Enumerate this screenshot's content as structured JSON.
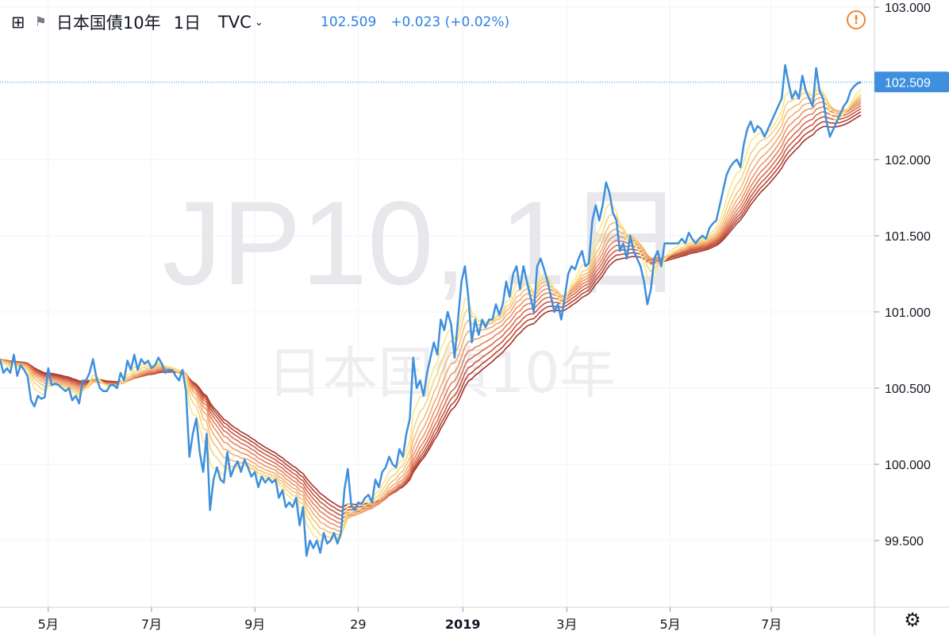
{
  "header": {
    "add_icon": "⊞",
    "flag_icon": "⚑",
    "symbol_name": "日本国債10年",
    "interval": "1日",
    "exchange": "TVC",
    "dropdown_icon": "⌄",
    "last_price": "102.509",
    "change": "+0.023 (+0.02%)",
    "alert_icon": "!",
    "settings_icon": "⚙"
  },
  "watermark": {
    "line1": "JP10, 1日",
    "line2": "日本国債10年"
  },
  "colors": {
    "price_line": "#3e8fdd",
    "price_tag": "#3e8fdd",
    "ribbon": [
      "#f9e785",
      "#f7d37d",
      "#f4bf76",
      "#f1aa70",
      "#ec9566",
      "#e2805a",
      "#d66a4e",
      "#c75641",
      "#b64434",
      "#a2342a"
    ],
    "grid": "#f0f3fa",
    "axis_text": "#131722",
    "alert": "#f0862c"
  },
  "chart_data": {
    "type": "line",
    "y_ticks": [
      "103.000",
      "102.500",
      "102.000",
      "101.500",
      "101.000",
      "100.500",
      "100.000",
      "99.500"
    ],
    "ylim": [
      99.0,
      103.0
    ],
    "x_ticks": [
      {
        "label": "5月",
        "t": 0.07
      },
      {
        "label": "7月",
        "t": 0.22
      },
      {
        "label": "9月",
        "t": 0.37
      },
      {
        "label": "29",
        "t": 0.52
      },
      {
        "label": "2019",
        "t": 0.672
      },
      {
        "label": "3月",
        "t": 0.823
      },
      {
        "label": "5月",
        "t": 0.973
      },
      {
        "label": "7月",
        "t": 1.12
      }
    ],
    "last_value": "102.509",
    "series": [
      {
        "type": "price",
        "points": [
          [
            0.0,
            100.69
          ],
          [
            0.005,
            100.6
          ],
          [
            0.01,
            100.63
          ],
          [
            0.015,
            100.6
          ],
          [
            0.02,
            100.72
          ],
          [
            0.025,
            100.58
          ],
          [
            0.03,
            100.65
          ],
          [
            0.035,
            100.62
          ],
          [
            0.04,
            100.58
          ],
          [
            0.045,
            100.42
          ],
          [
            0.05,
            100.38
          ],
          [
            0.055,
            100.45
          ],
          [
            0.06,
            100.43
          ],
          [
            0.065,
            100.44
          ],
          [
            0.07,
            100.63
          ],
          [
            0.075,
            100.52
          ],
          [
            0.08,
            100.53
          ],
          [
            0.085,
            100.52
          ],
          [
            0.09,
            100.5
          ],
          [
            0.095,
            100.48
          ],
          [
            0.1,
            100.5
          ],
          [
            0.105,
            100.42
          ],
          [
            0.11,
            100.45
          ],
          [
            0.115,
            100.4
          ],
          [
            0.12,
            100.55
          ],
          [
            0.125,
            100.55
          ],
          [
            0.13,
            100.6
          ],
          [
            0.135,
            100.69
          ],
          [
            0.14,
            100.57
          ],
          [
            0.145,
            100.5
          ],
          [
            0.15,
            100.48
          ],
          [
            0.155,
            100.48
          ],
          [
            0.16,
            100.52
          ],
          [
            0.165,
            100.52
          ],
          [
            0.17,
            100.5
          ],
          [
            0.175,
            100.6
          ],
          [
            0.18,
            100.55
          ],
          [
            0.185,
            100.68
          ],
          [
            0.19,
            100.62
          ],
          [
            0.195,
            100.72
          ],
          [
            0.2,
            100.62
          ],
          [
            0.205,
            100.69
          ],
          [
            0.21,
            100.66
          ],
          [
            0.215,
            100.68
          ],
          [
            0.22,
            100.63
          ],
          [
            0.225,
            100.65
          ],
          [
            0.23,
            100.7
          ],
          [
            0.235,
            100.66
          ],
          [
            0.24,
            100.6
          ],
          [
            0.245,
            100.62
          ],
          [
            0.25,
            100.62
          ],
          [
            0.255,
            100.58
          ],
          [
            0.26,
            100.55
          ],
          [
            0.265,
            100.62
          ],
          [
            0.27,
            100.48
          ],
          [
            0.275,
            100.05
          ],
          [
            0.28,
            100.2
          ],
          [
            0.285,
            100.3
          ],
          [
            0.29,
            100.08
          ],
          [
            0.295,
            99.95
          ],
          [
            0.3,
            100.2
          ],
          [
            0.305,
            99.7
          ],
          [
            0.31,
            99.9
          ],
          [
            0.315,
            99.98
          ],
          [
            0.32,
            99.9
          ],
          [
            0.325,
            99.88
          ],
          [
            0.33,
            100.08
          ],
          [
            0.335,
            99.92
          ],
          [
            0.34,
            99.98
          ],
          [
            0.345,
            100.02
          ],
          [
            0.35,
            99.95
          ],
          [
            0.355,
            100.03
          ],
          [
            0.36,
            99.98
          ],
          [
            0.365,
            99.92
          ],
          [
            0.37,
            99.95
          ],
          [
            0.375,
            99.85
          ],
          [
            0.38,
            99.92
          ],
          [
            0.385,
            99.88
          ],
          [
            0.39,
            99.91
          ],
          [
            0.395,
            99.88
          ],
          [
            0.4,
            99.9
          ],
          [
            0.405,
            99.78
          ],
          [
            0.41,
            99.83
          ],
          [
            0.415,
            99.72
          ],
          [
            0.42,
            99.75
          ],
          [
            0.425,
            99.72
          ],
          [
            0.43,
            99.78
          ],
          [
            0.435,
            99.6
          ],
          [
            0.44,
            99.72
          ],
          [
            0.445,
            99.4
          ],
          [
            0.45,
            99.5
          ],
          [
            0.455,
            99.45
          ],
          [
            0.46,
            99.5
          ],
          [
            0.465,
            99.42
          ],
          [
            0.47,
            99.55
          ],
          [
            0.475,
            99.48
          ],
          [
            0.48,
            99.5
          ],
          [
            0.485,
            99.55
          ],
          [
            0.49,
            99.48
          ],
          [
            0.495,
            99.55
          ],
          [
            0.5,
            99.83
          ],
          [
            0.505,
            99.97
          ],
          [
            0.51,
            99.73
          ],
          [
            0.515,
            99.7
          ],
          [
            0.52,
            99.75
          ],
          [
            0.525,
            99.74
          ],
          [
            0.53,
            99.78
          ],
          [
            0.535,
            99.8
          ],
          [
            0.54,
            99.75
          ],
          [
            0.545,
            99.9
          ],
          [
            0.55,
            99.85
          ],
          [
            0.555,
            99.95
          ],
          [
            0.56,
            99.98
          ],
          [
            0.565,
            100.05
          ],
          [
            0.57,
            100.0
          ],
          [
            0.575,
            99.98
          ],
          [
            0.58,
            100.1
          ],
          [
            0.585,
            100.05
          ],
          [
            0.59,
            100.2
          ],
          [
            0.595,
            100.3
          ],
          [
            0.6,
            100.7
          ],
          [
            0.605,
            100.5
          ],
          [
            0.61,
            100.55
          ],
          [
            0.615,
            100.45
          ],
          [
            0.62,
            100.6
          ],
          [
            0.625,
            100.7
          ],
          [
            0.63,
            100.8
          ],
          [
            0.635,
            100.72
          ],
          [
            0.64,
            100.95
          ],
          [
            0.645,
            100.88
          ],
          [
            0.65,
            101.0
          ],
          [
            0.655,
            100.92
          ],
          [
            0.66,
            100.7
          ],
          [
            0.665,
            100.95
          ],
          [
            0.67,
            101.2
          ],
          [
            0.675,
            101.3
          ],
          [
            0.68,
            101.1
          ],
          [
            0.685,
            100.8
          ],
          [
            0.69,
            100.95
          ],
          [
            0.695,
            100.85
          ],
          [
            0.7,
            100.95
          ],
          [
            0.705,
            100.9
          ],
          [
            0.71,
            100.95
          ],
          [
            0.715,
            100.95
          ],
          [
            0.72,
            101.05
          ],
          [
            0.725,
            100.98
          ],
          [
            0.73,
            101.05
          ],
          [
            0.735,
            101.2
          ],
          [
            0.74,
            101.1
          ],
          [
            0.745,
            101.25
          ],
          [
            0.75,
            101.3
          ],
          [
            0.755,
            101.15
          ],
          [
            0.76,
            101.3
          ],
          [
            0.765,
            101.2
          ],
          [
            0.77,
            101.1
          ],
          [
            0.775,
            101.0
          ],
          [
            0.78,
            101.3
          ],
          [
            0.785,
            101.35
          ],
          [
            0.79,
            101.28
          ],
          [
            0.795,
            101.2
          ],
          [
            0.8,
            101.1
          ],
          [
            0.805,
            101.0
          ],
          [
            0.81,
            101.05
          ],
          [
            0.815,
            100.95
          ],
          [
            0.82,
            101.1
          ],
          [
            0.825,
            101.25
          ],
          [
            0.83,
            101.3
          ],
          [
            0.835,
            101.28
          ],
          [
            0.84,
            101.35
          ],
          [
            0.845,
            101.4
          ],
          [
            0.85,
            101.3
          ],
          [
            0.855,
            101.32
          ],
          [
            0.86,
            101.6
          ],
          [
            0.865,
            101.7
          ],
          [
            0.87,
            101.6
          ],
          [
            0.875,
            101.7
          ],
          [
            0.88,
            101.85
          ],
          [
            0.885,
            101.78
          ],
          [
            0.89,
            101.65
          ],
          [
            0.895,
            101.6
          ],
          [
            0.9,
            101.4
          ],
          [
            0.905,
            101.45
          ],
          [
            0.91,
            101.35
          ],
          [
            0.915,
            101.5
          ],
          [
            0.92,
            101.4
          ],
          [
            0.925,
            101.35
          ],
          [
            0.93,
            101.3
          ],
          [
            0.935,
            101.2
          ],
          [
            0.94,
            101.05
          ],
          [
            0.945,
            101.15
          ],
          [
            0.95,
            101.35
          ],
          [
            0.955,
            101.4
          ],
          [
            0.96,
            101.3
          ],
          [
            0.965,
            101.45
          ],
          [
            0.97,
            101.45
          ],
          [
            0.975,
            101.45
          ],
          [
            0.98,
            101.45
          ],
          [
            0.985,
            101.45
          ],
          [
            0.99,
            101.48
          ],
          [
            0.995,
            101.45
          ],
          [
            1.0,
            101.52
          ],
          [
            1.005,
            101.48
          ],
          [
            1.01,
            101.45
          ],
          [
            1.015,
            101.48
          ],
          [
            1.02,
            101.5
          ],
          [
            1.025,
            101.48
          ],
          [
            1.03,
            101.55
          ],
          [
            1.035,
            101.58
          ],
          [
            1.04,
            101.6
          ],
          [
            1.045,
            101.7
          ],
          [
            1.05,
            101.8
          ],
          [
            1.055,
            101.9
          ],
          [
            1.06,
            101.95
          ],
          [
            1.065,
            101.98
          ],
          [
            1.07,
            102.0
          ],
          [
            1.075,
            101.95
          ],
          [
            1.08,
            102.1
          ],
          [
            1.085,
            102.2
          ],
          [
            1.09,
            102.25
          ],
          [
            1.095,
            102.18
          ],
          [
            1.1,
            102.22
          ],
          [
            1.105,
            102.2
          ],
          [
            1.11,
            102.15
          ],
          [
            1.115,
            102.2
          ],
          [
            1.12,
            102.25
          ],
          [
            1.125,
            102.3
          ],
          [
            1.13,
            102.35
          ],
          [
            1.135,
            102.4
          ],
          [
            1.14,
            102.62
          ],
          [
            1.145,
            102.5
          ],
          [
            1.15,
            102.4
          ],
          [
            1.155,
            102.45
          ],
          [
            1.16,
            102.4
          ],
          [
            1.165,
            102.55
          ],
          [
            1.17,
            102.45
          ],
          [
            1.175,
            102.4
          ],
          [
            1.18,
            102.35
          ],
          [
            1.185,
            102.6
          ],
          [
            1.19,
            102.45
          ],
          [
            1.195,
            102.4
          ],
          [
            1.2,
            102.25
          ],
          [
            1.205,
            102.15
          ],
          [
            1.21,
            102.2
          ],
          [
            1.215,
            102.25
          ],
          [
            1.22,
            102.3
          ],
          [
            1.225,
            102.35
          ],
          [
            1.23,
            102.38
          ],
          [
            1.235,
            102.45
          ],
          [
            1.24,
            102.48
          ],
          [
            1.245,
            102.5
          ],
          [
            1.25,
            102.509
          ]
        ]
      },
      {
        "type": "ema",
        "span": 5
      },
      {
        "type": "ema",
        "span": 8
      },
      {
        "type": "ema",
        "span": 11
      },
      {
        "type": "ema",
        "span": 14
      },
      {
        "type": "ema",
        "span": 17
      },
      {
        "type": "ema",
        "span": 20
      },
      {
        "type": "ema",
        "span": 23
      },
      {
        "type": "ema",
        "span": 26
      },
      {
        "type": "ema",
        "span": 29
      },
      {
        "type": "ema",
        "span": 32
      }
    ]
  }
}
